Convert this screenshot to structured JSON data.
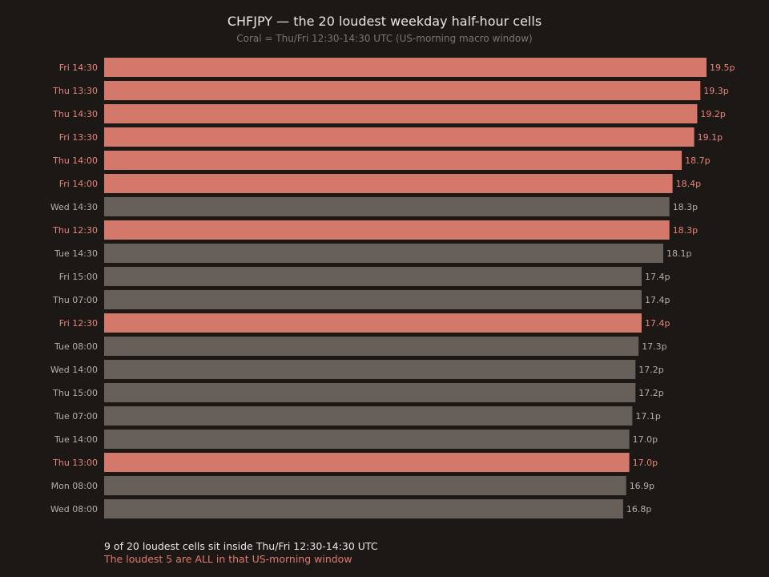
{
  "colors": {
    "background": "#1c1816",
    "highlight": "#d4786c",
    "highlight_text": "#e8847a",
    "base": "#67605a",
    "base_text": "#b5ada5"
  },
  "chart_data": {
    "type": "bar",
    "orientation": "horizontal",
    "title": "CHFJPY — the 20 loudest weekday half-hour cells",
    "subtitle": "Coral = Thu/Fri 12:30-14:30 UTC (US-morning macro window)",
    "xlabel": "",
    "ylabel": "",
    "value_suffix": "p",
    "xlim": [
      0,
      19.5
    ],
    "grid": false,
    "categories": [
      "Fri 14:30",
      "Thu 13:30",
      "Thu 14:30",
      "Fri 13:30",
      "Thu 14:00",
      "Fri 14:00",
      "Wed 14:30",
      "Thu 12:30",
      "Tue 14:30",
      "Fri 15:00",
      "Thu 07:00",
      "Fri 12:30",
      "Tue 08:00",
      "Wed 14:00",
      "Thu 15:00",
      "Tue 07:00",
      "Tue 14:00",
      "Thu 13:00",
      "Mon 08:00",
      "Wed 08:00"
    ],
    "values": [
      19.5,
      19.3,
      19.2,
      19.1,
      18.7,
      18.4,
      18.3,
      18.3,
      18.1,
      17.4,
      17.4,
      17.4,
      17.3,
      17.2,
      17.2,
      17.1,
      17.0,
      17.0,
      16.9,
      16.8
    ],
    "highlighted": [
      true,
      true,
      true,
      true,
      true,
      true,
      false,
      true,
      false,
      false,
      false,
      true,
      false,
      false,
      false,
      false,
      false,
      true,
      false,
      false
    ]
  },
  "annotations": {
    "line1": "9 of 20 loudest cells sit inside Thu/Fri 12:30-14:30 UTC",
    "line2": "The loudest 5 are ALL in that US-morning window"
  }
}
